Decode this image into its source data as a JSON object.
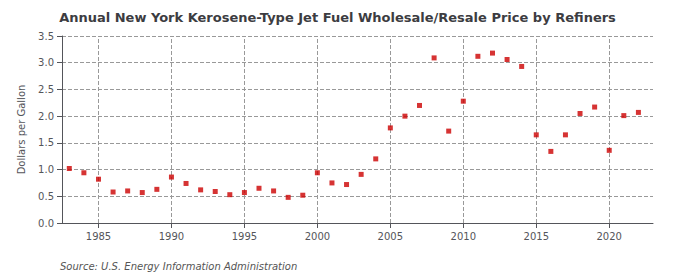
{
  "chart_data": {
    "type": "scatter",
    "title": "Annual New York Kerosene-Type Jet Fuel Wholesale/Resale Price by Refiners",
    "ylabel": "Dollars per Gallon",
    "annotations": [
      "Source: U.S. Energy Information Administration"
    ],
    "x": [
      1983,
      1984,
      1985,
      1986,
      1987,
      1988,
      1989,
      1990,
      1991,
      1992,
      1993,
      1994,
      1995,
      1996,
      1997,
      1998,
      1999,
      2000,
      2001,
      2002,
      2003,
      2004,
      2005,
      2006,
      2007,
      2008,
      2009,
      2010,
      2011,
      2012,
      2013,
      2014,
      2015,
      2016,
      2017,
      2018,
      2019,
      2020,
      2021,
      2022
    ],
    "values": [
      1.02,
      0.94,
      0.82,
      0.58,
      0.6,
      0.57,
      0.63,
      0.86,
      0.74,
      0.62,
      0.59,
      0.53,
      0.57,
      0.65,
      0.6,
      0.48,
      0.52,
      0.94,
      0.75,
      0.72,
      0.91,
      1.2,
      1.78,
      2.0,
      2.2,
      3.09,
      1.72,
      2.28,
      3.12,
      3.18,
      3.06,
      2.93,
      1.65,
      1.34,
      1.65,
      2.05,
      2.17,
      1.36,
      2.01,
      2.07
    ],
    "color": "#cc0000",
    "marker": "square",
    "xlim": [
      1982.5,
      2023
    ],
    "xticks": [
      1985,
      1990,
      1995,
      2000,
      2005,
      2010,
      2015,
      2020
    ],
    "ylim": [
      0.0,
      3.5
    ],
    "yticks": [
      {
        "value": 0,
        "label": "0.0"
      },
      0.5,
      {
        "value": 1,
        "label": "1.0"
      },
      1.5,
      {
        "value": 2,
        "label": "2.0"
      },
      2.5,
      {
        "value": 3,
        "label": "3.0"
      },
      3.5
    ],
    "grid": true
  }
}
